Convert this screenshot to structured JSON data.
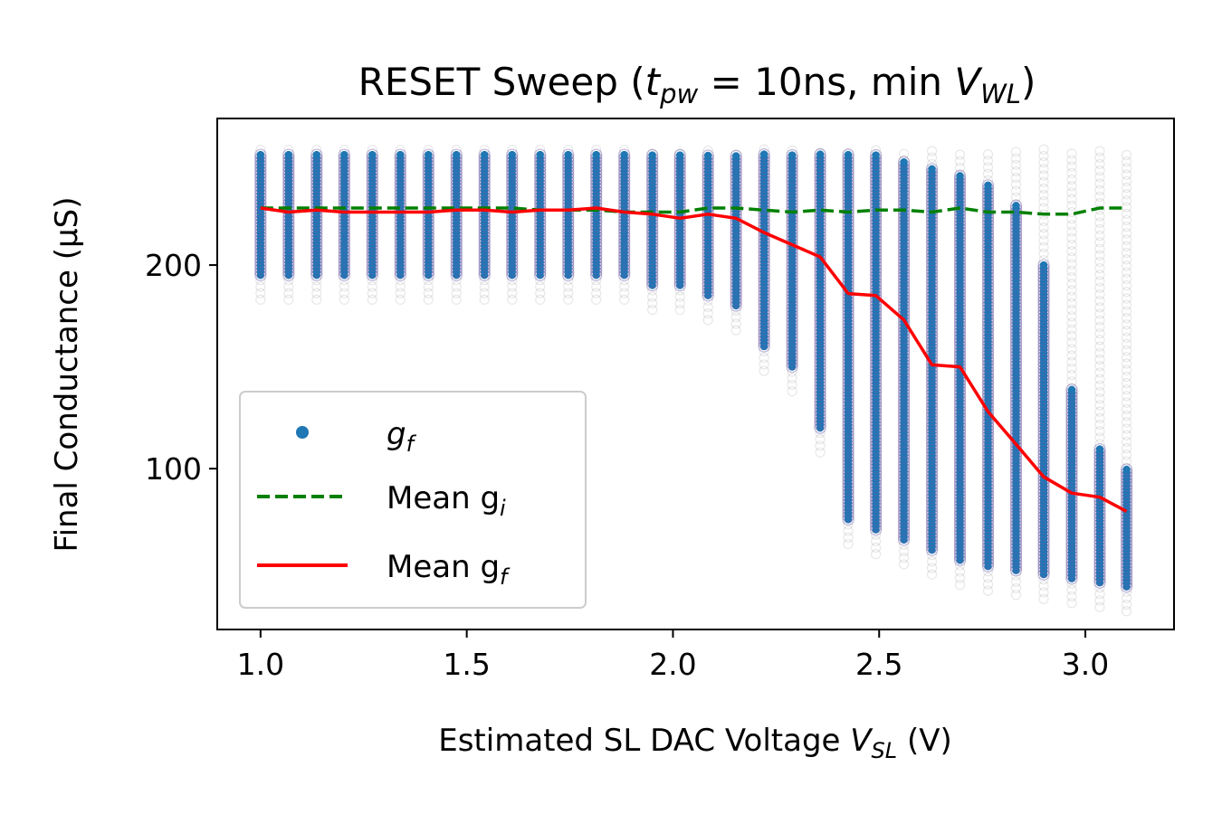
{
  "chart_data": {
    "type": "scatter",
    "title": {
      "prefix": "RESET Sweep (",
      "t": "t",
      "t_sub": "pw",
      "middle": " = 10ns, min ",
      "v": "V",
      "v_sub": "WL",
      "suffix": ")"
    },
    "xlabel": {
      "prefix": "Estimated SL DAC Voltage ",
      "v": "V",
      "v_sub": "SL",
      "suffix": " (V)"
    },
    "ylabel": "Final Conductance (µS)",
    "xlim": [
      0.895,
      3.215
    ],
    "ylim": [
      21,
      272
    ],
    "x_ticks": [
      1.0,
      1.5,
      2.0,
      2.5,
      3.0
    ],
    "x_tick_labels": [
      "1.0",
      "1.5",
      "2.0",
      "2.5",
      "3.0"
    ],
    "y_ticks": [
      100,
      200
    ],
    "y_tick_labels": [
      "100",
      "200"
    ],
    "grid": false,
    "legend_position": "lower left",
    "x": [
      1.0,
      1.068,
      1.136,
      1.203,
      1.271,
      1.339,
      1.407,
      1.475,
      1.543,
      1.61,
      1.678,
      1.746,
      1.814,
      1.882,
      1.95,
      2.017,
      2.085,
      2.153,
      2.221,
      2.289,
      2.357,
      2.425,
      2.492,
      2.56,
      2.628,
      2.696,
      2.764,
      2.832,
      2.899,
      2.967,
      3.035,
      3.1
    ],
    "series": [
      {
        "name": "g",
        "name_sub": "f",
        "kind": "scatter",
        "color": "#1f77b4",
        "ranges": [
          [
            195,
            255
          ],
          [
            195,
            255
          ],
          [
            195,
            255
          ],
          [
            195,
            255
          ],
          [
            195,
            255
          ],
          [
            195,
            255
          ],
          [
            195,
            255
          ],
          [
            195,
            255
          ],
          [
            195,
            255
          ],
          [
            195,
            255
          ],
          [
            195,
            255
          ],
          [
            195,
            255
          ],
          [
            195,
            255
          ],
          [
            195,
            255
          ],
          [
            190,
            255
          ],
          [
            190,
            255
          ],
          [
            185,
            255
          ],
          [
            180,
            255
          ],
          [
            160,
            255
          ],
          [
            150,
            255
          ],
          [
            120,
            255
          ],
          [
            75,
            255
          ],
          [
            70,
            255
          ],
          [
            65,
            252
          ],
          [
            60,
            248
          ],
          [
            55,
            245
          ],
          [
            52,
            240
          ],
          [
            50,
            230
          ],
          [
            48,
            200
          ],
          [
            46,
            140
          ],
          [
            44,
            110
          ],
          [
            42,
            100
          ]
        ]
      },
      {
        "name": "Mean g",
        "name_sub": "i",
        "kind": "line",
        "style": "dashed",
        "color": "#008000",
        "values": [
          228,
          228,
          228,
          228,
          228,
          228,
          228,
          228,
          228,
          228,
          227,
          227,
          227,
          226,
          226,
          226,
          228,
          228,
          227,
          226,
          227,
          226,
          227,
          227,
          226,
          228,
          226,
          226,
          225,
          225,
          228,
          228
        ]
      },
      {
        "name": "Mean g",
        "name_sub": "f",
        "kind": "line",
        "style": "solid",
        "color": "#ff0000",
        "values": [
          228,
          226,
          227,
          226,
          226,
          226,
          226,
          227,
          227,
          226,
          227,
          227,
          228,
          226,
          225,
          223,
          225,
          223,
          216,
          210,
          204,
          186,
          185,
          173,
          151,
          150,
          128,
          112,
          96,
          88,
          86,
          79
        ]
      }
    ],
    "faint_cloud_color": "#808080"
  }
}
